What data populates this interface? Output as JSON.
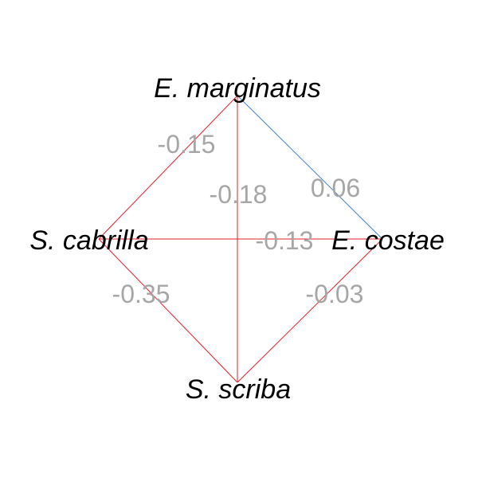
{
  "nodes": [
    {
      "id": "em",
      "label": "E. marginatus"
    },
    {
      "id": "sc",
      "label": "S. cabrilla"
    },
    {
      "id": "ec",
      "label": "E. costae"
    },
    {
      "id": "ss",
      "label": "S. scriba"
    }
  ],
  "edges": [
    {
      "id": "em-sc",
      "source": "em",
      "target": "sc",
      "weight": "-0.15",
      "color": "#e0202a"
    },
    {
      "id": "em-ss",
      "source": "em",
      "target": "ss",
      "weight": "-0.18",
      "color": "#e0202a"
    },
    {
      "id": "em-ec",
      "source": "em",
      "target": "ec",
      "weight": "0.06",
      "color": "#3a7fd0"
    },
    {
      "id": "sc-ec",
      "source": "sc",
      "target": "ec",
      "weight": "-0.13",
      "color": "#e0202a"
    },
    {
      "id": "sc-ss",
      "source": "sc",
      "target": "ss",
      "weight": "-0.35",
      "color": "#e0202a"
    },
    {
      "id": "ec-ss",
      "source": "ec",
      "target": "ss",
      "weight": "-0.03",
      "color": "#e0202a"
    }
  ],
  "colors": {
    "negative": "#e0202a",
    "positive": "#3a7fd0",
    "weight_text": "#a6a6a6",
    "node_text": "#000000"
  }
}
